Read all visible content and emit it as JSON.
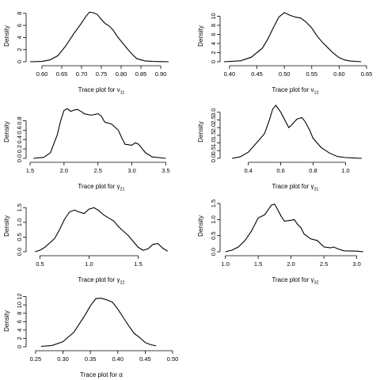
{
  "chart_data": [
    {
      "type": "line",
      "xlabel": "Trace plot for ν",
      "xlabel_sub": "11",
      "ylabel": "Density",
      "x_ticks": [
        "0.60",
        "0.65",
        "0.70",
        "0.75",
        "0.80",
        "0.85",
        "0.90"
      ],
      "y_ticks": [
        "0",
        "2",
        "4",
        "6",
        "8"
      ],
      "xlim": [
        0.57,
        0.93
      ],
      "ylim": [
        0,
        8.5
      ],
      "series": [
        {
          "x": [
            0.57,
            0.6,
            0.62,
            0.64,
            0.66,
            0.68,
            0.7,
            0.71,
            0.72,
            0.73,
            0.74,
            0.75,
            0.76,
            0.77,
            0.78,
            0.79,
            0.8,
            0.81,
            0.82,
            0.83,
            0.84,
            0.86,
            0.88,
            0.9,
            0.92
          ],
          "y": [
            0.0,
            0.05,
            0.3,
            1.0,
            2.6,
            4.6,
            6.4,
            7.4,
            8.2,
            8.1,
            7.8,
            7.0,
            6.3,
            5.9,
            5.2,
            4.2,
            3.4,
            2.6,
            1.8,
            1.1,
            0.5,
            0.15,
            0.05,
            0.02,
            0.0
          ]
        }
      ]
    },
    {
      "type": "line",
      "xlabel": "Trace plot for ν",
      "xlabel_sub": "12",
      "ylabel": "Density",
      "x_ticks": [
        "0.40",
        "0.45",
        "0.50",
        "0.55",
        "0.60",
        "0.65"
      ],
      "y_ticks": [
        "0",
        "2",
        "4",
        "6",
        "8",
        "10"
      ],
      "xlim": [
        0.39,
        0.65
      ],
      "ylim": [
        0,
        11.3
      ],
      "series": [
        {
          "x": [
            0.39,
            0.42,
            0.44,
            0.46,
            0.47,
            0.48,
            0.49,
            0.5,
            0.51,
            0.52,
            0.53,
            0.54,
            0.55,
            0.56,
            0.57,
            0.58,
            0.59,
            0.6,
            0.61,
            0.62,
            0.64
          ],
          "y": [
            0.0,
            0.2,
            1.0,
            3.0,
            5.0,
            7.5,
            9.8,
            10.8,
            10.2,
            9.8,
            9.6,
            8.7,
            7.4,
            5.6,
            4.2,
            3.0,
            1.8,
            0.9,
            0.4,
            0.15,
            0.0
          ]
        }
      ]
    },
    {
      "type": "line",
      "xlabel": "Trace plot for γ",
      "xlabel_sub": "21",
      "ylabel": "Density",
      "x_ticks": [
        "1.5",
        "2.0",
        "2.5",
        "3.0",
        "3.5"
      ],
      "y_ticks": [
        "0.0",
        "0.2",
        "0.4",
        "0.6",
        "0.8"
      ],
      "xlim": [
        1.5,
        3.6
      ],
      "ylim": [
        0,
        1.13
      ],
      "series": [
        {
          "x": [
            1.55,
            1.7,
            1.8,
            1.9,
            1.95,
            2.0,
            2.05,
            2.1,
            2.15,
            2.2,
            2.25,
            2.3,
            2.4,
            2.5,
            2.55,
            2.6,
            2.7,
            2.8,
            2.85,
            2.9,
            3.0,
            3.05,
            3.1,
            3.2,
            3.3,
            3.5
          ],
          "y": [
            0.0,
            0.02,
            0.12,
            0.5,
            0.8,
            1.02,
            1.06,
            1.0,
            1.03,
            1.04,
            1.0,
            0.95,
            0.92,
            0.95,
            0.9,
            0.77,
            0.73,
            0.6,
            0.44,
            0.3,
            0.28,
            0.33,
            0.3,
            0.12,
            0.03,
            0.0
          ]
        }
      ]
    },
    {
      "type": "line",
      "xlabel": "Trace plot for γ",
      "xlabel_sub": "31",
      "ylabel": "Density",
      "x_ticks": [
        "0.4",
        "0.6",
        "0.8",
        "1.0"
      ],
      "y_ticks": [
        "0.0",
        "0.5",
        "1.0",
        "1.5",
        "2.0",
        "2.5",
        "3.0"
      ],
      "xlim": [
        0.25,
        1.13
      ],
      "ylim": [
        0,
        3.45
      ],
      "series": [
        {
          "x": [
            0.3,
            0.35,
            0.4,
            0.45,
            0.5,
            0.53,
            0.55,
            0.57,
            0.6,
            0.63,
            0.65,
            0.67,
            0.7,
            0.73,
            0.75,
            0.78,
            0.8,
            0.85,
            0.9,
            0.95,
            1.0,
            1.05,
            1.1
          ],
          "y": [
            0.0,
            0.1,
            0.4,
            1.0,
            1.6,
            2.5,
            3.2,
            3.45,
            3.0,
            2.4,
            2.0,
            2.2,
            2.55,
            2.65,
            2.4,
            1.8,
            1.3,
            0.7,
            0.35,
            0.12,
            0.05,
            0.02,
            0.0
          ]
        }
      ]
    },
    {
      "type": "line",
      "xlabel": "Trace plot for γ",
      "xlabel_sub": "22",
      "ylabel": "Density",
      "x_ticks": [
        "0.5",
        "1.0",
        "1.5"
      ],
      "y_ticks": [
        "0.0",
        "0.5",
        "1.0",
        "1.5"
      ],
      "xlim": [
        0.4,
        1.85
      ],
      "ylim": [
        0,
        1.75
      ],
      "series": [
        {
          "x": [
            0.45,
            0.5,
            0.55,
            0.6,
            0.65,
            0.7,
            0.75,
            0.8,
            0.85,
            0.9,
            0.95,
            1.0,
            1.05,
            1.1,
            1.15,
            1.2,
            1.25,
            1.3,
            1.35,
            1.4,
            1.45,
            1.5,
            1.55,
            1.6,
            1.65,
            1.7,
            1.75,
            1.8
          ],
          "y": [
            0.0,
            0.05,
            0.15,
            0.3,
            0.45,
            0.75,
            1.1,
            1.35,
            1.42,
            1.35,
            1.3,
            1.45,
            1.5,
            1.4,
            1.25,
            1.15,
            1.05,
            0.85,
            0.7,
            0.55,
            0.35,
            0.15,
            0.05,
            0.1,
            0.25,
            0.28,
            0.12,
            0.02
          ]
        }
      ]
    },
    {
      "type": "line",
      "xlabel": "Trace plot for γ",
      "xlabel_sub": "32",
      "ylabel": "Density",
      "x_ticks": [
        "1.0",
        "1.5",
        "2.0",
        "2.5",
        "3.0"
      ],
      "y_ticks": [
        "0.0",
        "0.5",
        "1.0",
        "1.5"
      ],
      "xlim": [
        0.98,
        3.15
      ],
      "ylim": [
        0,
        1.6
      ],
      "series": [
        {
          "x": [
            1.0,
            1.1,
            1.2,
            1.3,
            1.4,
            1.5,
            1.55,
            1.6,
            1.65,
            1.7,
            1.75,
            1.8,
            1.85,
            1.9,
            2.0,
            2.05,
            2.1,
            2.15,
            2.2,
            2.3,
            2.4,
            2.5,
            2.6,
            2.65,
            2.7,
            2.8,
            3.0,
            3.1
          ],
          "y": [
            0.0,
            0.05,
            0.15,
            0.35,
            0.65,
            1.05,
            1.1,
            1.15,
            1.3,
            1.45,
            1.48,
            1.3,
            1.1,
            0.95,
            0.98,
            1.0,
            0.85,
            0.75,
            0.55,
            0.4,
            0.35,
            0.15,
            0.12,
            0.15,
            0.1,
            0.03,
            0.02,
            0.0
          ]
        }
      ]
    },
    {
      "type": "line",
      "xlabel": "Trace plot for α",
      "xlabel_sub": "",
      "ylabel": "Density",
      "x_ticks": [
        "0.25",
        "0.30",
        "0.35",
        "0.40",
        "0.45",
        "0.50"
      ],
      "y_ticks": [
        "0",
        "2",
        "4",
        "6",
        "8",
        "10",
        "12"
      ],
      "xlim": [
        0.24,
        0.5
      ],
      "ylim": [
        0,
        12.3
      ],
      "series": [
        {
          "x": [
            0.26,
            0.28,
            0.3,
            0.32,
            0.33,
            0.34,
            0.35,
            0.36,
            0.37,
            0.38,
            0.39,
            0.4,
            0.41,
            0.42,
            0.43,
            0.44,
            0.45,
            0.46,
            0.47
          ],
          "y": [
            0.1,
            0.3,
            1.2,
            3.5,
            5.5,
            7.5,
            9.8,
            11.5,
            11.6,
            11.2,
            10.7,
            9.0,
            7.0,
            5.0,
            3.2,
            2.2,
            1.0,
            0.5,
            0.2
          ]
        }
      ]
    }
  ]
}
